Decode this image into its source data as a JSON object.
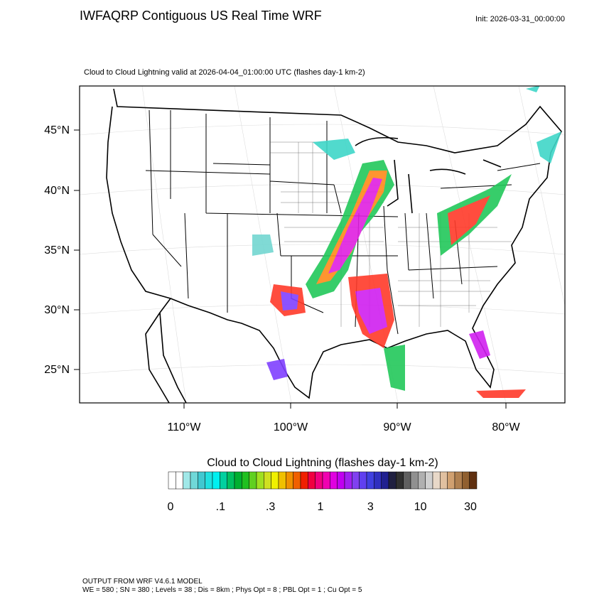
{
  "header": {
    "title": "IWFAQRP Contiguous US Real Time WRF",
    "init": "Init: 2026-03-31_00:00:00"
  },
  "map": {
    "subtitle": "Cloud to Cloud Lightning valid at 2026-04-04_01:00:00 UTC   (flashes day-1 km-2)",
    "lat_labels": [
      "45°N",
      "40°N",
      "35°N",
      "30°N",
      "25°N"
    ],
    "lon_labels": [
      "110°W",
      "100°W",
      "90°W",
      "80°W"
    ]
  },
  "colorbar": {
    "title": "Cloud to Cloud Lightning  (flashes day-1 km-2)",
    "labels": [
      "0",
      ".1",
      ".3",
      "1",
      "3",
      "10",
      "30"
    ]
  },
  "footer": {
    "line1": "OUTPUT FROM WRF V4.6.1 MODEL",
    "line2": "WE = 580 ; SN = 380 ; Levels = 38 ; Dis = 8km ; Phys Opt = 8 ; PBL Opt = 1 ; Cu Opt = 5"
  }
}
